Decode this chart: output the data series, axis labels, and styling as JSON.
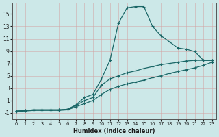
{
  "xlabel": "Humidex (Indice chaleur)",
  "ylabel": "",
  "background_color": "#cce8e8",
  "grid_color": "#b0d4d4",
  "line_color": "#1a6666",
  "xlim": [
    -0.5,
    23.5
  ],
  "ylim": [
    -2.0,
    16.8
  ],
  "xticks": [
    0,
    1,
    2,
    3,
    4,
    5,
    6,
    7,
    8,
    9,
    10,
    11,
    12,
    13,
    14,
    15,
    16,
    17,
    18,
    19,
    20,
    21,
    22,
    23
  ],
  "yticks": [
    -1,
    1,
    3,
    5,
    7,
    9,
    11,
    13,
    15
  ],
  "x": [
    0,
    1,
    2,
    3,
    4,
    5,
    6,
    7,
    8,
    9,
    10,
    11,
    12,
    13,
    14,
    15,
    16,
    17,
    18,
    19,
    20,
    21,
    22,
    23
  ],
  "series1": [
    -0.7,
    -0.6,
    -0.5,
    -0.5,
    -0.5,
    -0.5,
    -0.4,
    0.3,
    1.5,
    2.0,
    4.5,
    7.5,
    13.5,
    16.0,
    16.2,
    16.2,
    13.0,
    11.5,
    10.5,
    9.5,
    9.3,
    8.9,
    7.5,
    7.5
  ],
  "series2": [
    -0.7,
    -0.6,
    -0.5,
    -0.5,
    -0.5,
    -0.5,
    -0.4,
    0.2,
    1.0,
    1.5,
    3.5,
    4.5,
    5.0,
    5.5,
    5.8,
    6.2,
    6.5,
    6.8,
    7.0,
    7.2,
    7.4,
    7.5,
    7.5,
    7.5
  ],
  "series3": [
    -0.8,
    -0.7,
    -0.6,
    -0.6,
    -0.6,
    -0.6,
    -0.5,
    0.0,
    0.5,
    1.0,
    2.0,
    2.8,
    3.3,
    3.7,
    4.0,
    4.3,
    4.7,
    5.0,
    5.4,
    5.7,
    6.0,
    6.3,
    6.7,
    7.2
  ]
}
